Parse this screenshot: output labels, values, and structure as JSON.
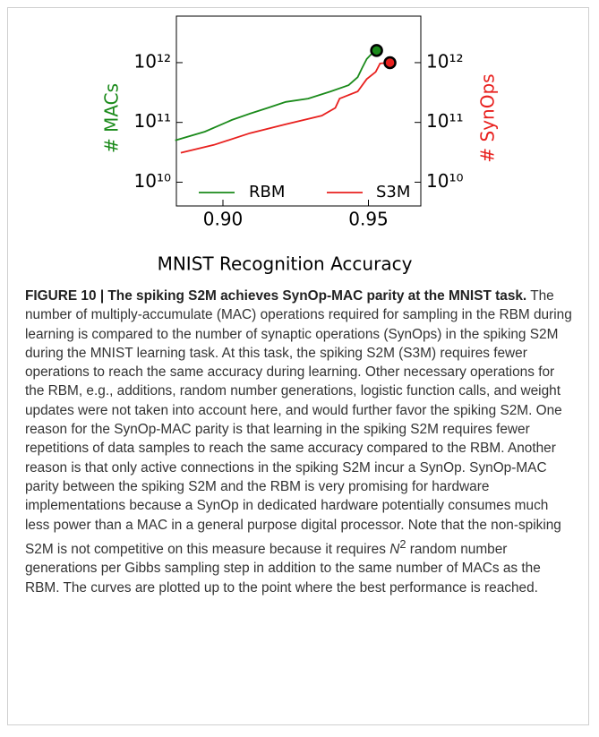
{
  "chart_data": {
    "type": "line",
    "xlabel": "MNIST Recognition Accuracy",
    "ylabel": "# MACs",
    "y2label": "# SynOps",
    "xlim": [
      0.884,
      0.968
    ],
    "xticks": [
      {
        "value": 0.9,
        "label": "0.90"
      },
      {
        "value": 0.95,
        "label": "0.95"
      }
    ],
    "ylim": [
      4000000000,
      6000000000000
    ],
    "yticks": [
      {
        "value": 10000000000,
        "label": "10¹⁰"
      },
      {
        "value": 100000000000,
        "label": "10¹¹"
      },
      {
        "value": 1000000000000,
        "label": "10¹²"
      }
    ],
    "y2lim": [
      4000000000,
      6000000000000
    ],
    "y2ticks": [
      {
        "value": 10000000000,
        "label": "10¹⁰"
      },
      {
        "value": 100000000000,
        "label": "10¹¹"
      },
      {
        "value": 1000000000000,
        "label": "10¹²"
      }
    ],
    "log_scale": true,
    "legend": "lower center",
    "series": [
      {
        "name": "RBM",
        "color": "#1a8a1a",
        "axis": "y",
        "x": [
          0.8836,
          0.8938,
          0.9031,
          0.9093,
          0.9154,
          0.9216,
          0.9293,
          0.937,
          0.9432,
          0.9463,
          0.9478,
          0.9494,
          0.9509,
          0.9528
        ],
        "values": [
          50000000000,
          70000000000,
          110000000000,
          140000000000,
          175000000000,
          220000000000,
          250000000000,
          330000000000,
          420000000000,
          570000000000,
          810000000000,
          1150000000000,
          1370000000000,
          1600000000000
        ]
      },
      {
        "name": "S3M",
        "color": "#e8201e",
        "axis": "y2",
        "x": [
          0.8855,
          0.8969,
          0.9093,
          0.9216,
          0.934,
          0.9386,
          0.9401,
          0.9463,
          0.9494,
          0.9525,
          0.954,
          0.9574
        ],
        "values": [
          31000000000,
          42000000000,
          66000000000,
          93000000000,
          130000000000,
          175000000000,
          250000000000,
          330000000000,
          530000000000,
          700000000000,
          970000000000,
          1000000000000
        ]
      }
    ]
  },
  "caption": {
    "label": "FIGURE 10 | The spiking S2M achieves SynOp-MAC parity at the MNIST task.",
    "text_1": "The number of multiply-accumulate (MAC) operations required for sampling in the RBM during learning is compared to the number of synaptic operations (SynOps) in the spiking S2M during the MNIST learning task. At this task, the spiking S2M (S3M) requires fewer operations to reach the same accuracy during learning. Other necessary operations for the RBM, e.g., additions, random number generations, logistic function calls, and weight updates were not taken into account here, and would further favor the spiking S2M. One reason for the SynOp-MAC parity is that learning in the spiking S2M requires fewer repetitions of data samples to reach the same accuracy compared to the RBM. Another reason is that only active connections in the spiking S2M incur a SynOp. SynOp-MAC parity between the spiking S2M and the RBM is very promising for hardware implementations because a SynOp in dedicated hardware potentially consumes much less power than a MAC in a general purpose digital processor. Note that the non-spiking S2M is not competitive on this measure because it requires",
    "math": "N",
    "superscript": "2",
    "text_2": "random number generations per Gibbs sampling step in addition to the same number of MACs as the RBM. The curves are plotted up to the point where the best performance is reached."
  }
}
